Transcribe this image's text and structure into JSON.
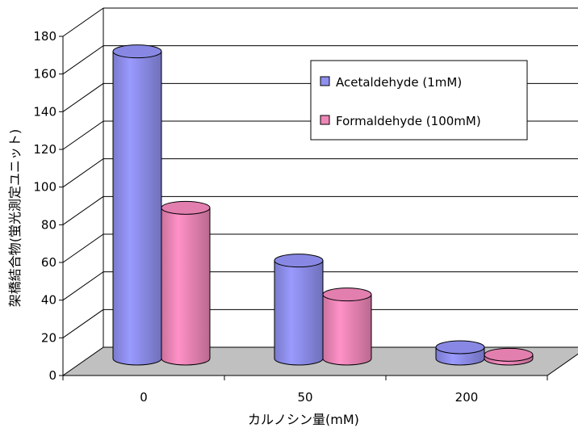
{
  "chart_data": {
    "type": "bar",
    "style": "3d-cylinder",
    "categories": [
      "0",
      "50",
      "200"
    ],
    "series": [
      {
        "name": "Acetaldehyde (1mM)",
        "values": [
          163,
          52,
          6
        ],
        "color": "#8f8ff0"
      },
      {
        "name": "Formaldehyde (100mM)",
        "values": [
          80,
          34,
          2
        ],
        "color": "#ee86b8"
      }
    ],
    "ylim": [
      0,
      180
    ],
    "yticks": [
      0,
      20,
      40,
      60,
      80,
      100,
      120,
      140,
      160,
      180
    ],
    "ylabel": "架橋結合物(蛍光測定ユニット)",
    "xlabel": "カルノシン量(mM)",
    "grid": true,
    "legend_position": "top-right",
    "floor_color": "#c0c0c0"
  }
}
